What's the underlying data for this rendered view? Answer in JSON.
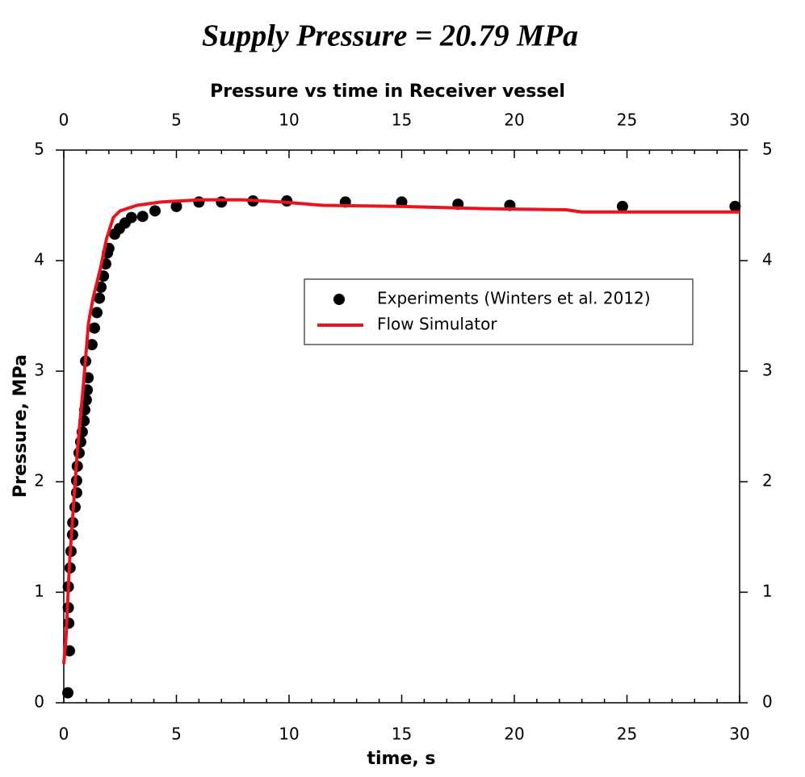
{
  "chart_data": {
    "type": "scatter",
    "title": "Supply Pressure = 20.79 MPa",
    "subtitle": "Pressure vs time in Receiver vessel",
    "x_label": "time, s",
    "y_label": "Pressure, MPa",
    "xlim": [
      0,
      30
    ],
    "xticks": [
      0,
      5,
      10,
      15,
      20,
      25,
      30
    ],
    "xminorticks": [
      1,
      2,
      3,
      4,
      6,
      7,
      8,
      9,
      11,
      12,
      13,
      14,
      16,
      17,
      18,
      19,
      21,
      22,
      23,
      24,
      26,
      27,
      28,
      29
    ],
    "ylim": [
      0,
      5
    ],
    "yticks": [
      0,
      1,
      2,
      3,
      4,
      5
    ],
    "legend": "upper right",
    "series": [
      {
        "name": "Experiments (Winters et al. 2012)",
        "color": "#000000",
        "mode": "markers",
        "x": [
          0.18,
          0.25,
          0.22,
          0.2,
          0.2,
          0.28,
          0.32,
          0.39,
          0.4,
          0.5,
          0.57,
          0.57,
          0.6,
          0.68,
          0.75,
          0.82,
          0.9,
          0.93,
          1.0,
          1.04,
          1.08,
          0.97,
          1.25,
          1.36,
          1.47,
          1.58,
          1.65,
          1.76,
          1.86,
          1.94,
          2.0,
          2.26,
          2.47,
          2.72,
          3.0,
          3.5,
          4.05,
          5.0,
          6.0,
          7.0,
          8.4,
          9.9,
          12.5,
          15.0,
          17.5,
          19.8,
          24.8,
          29.8
        ],
        "values": [
          0.09,
          0.47,
          0.72,
          0.86,
          1.05,
          1.22,
          1.37,
          1.52,
          1.63,
          1.77,
          1.9,
          2.01,
          2.14,
          2.26,
          2.36,
          2.45,
          2.55,
          2.65,
          2.74,
          2.83,
          2.94,
          3.09,
          3.24,
          3.39,
          3.53,
          3.66,
          3.76,
          3.86,
          3.97,
          4.07,
          4.11,
          4.24,
          4.29,
          4.34,
          4.39,
          4.4,
          4.45,
          4.49,
          4.53,
          4.53,
          4.54,
          4.54,
          4.53,
          4.53,
          4.51,
          4.5,
          4.49,
          4.49
        ]
      },
      {
        "name": "Flow Simulator",
        "color": "#e8141e",
        "mode": "line",
        "x": [
          0,
          0.1,
          0.25,
          0.4,
          0.6,
          0.86,
          1.1,
          1.3,
          1.65,
          1.9,
          2.2,
          2.5,
          3.25,
          4.3,
          6.1,
          7.9,
          9.7,
          11.5,
          15.1,
          18.7,
          22.3,
          23.0,
          25.8,
          30
        ],
        "values": [
          0.35,
          0.59,
          1.25,
          1.69,
          2.27,
          2.85,
          3.44,
          3.66,
          3.95,
          4.2,
          4.39,
          4.45,
          4.5,
          4.53,
          4.55,
          4.55,
          4.53,
          4.5,
          4.49,
          4.47,
          4.46,
          4.44,
          4.44,
          4.44
        ]
      }
    ]
  }
}
